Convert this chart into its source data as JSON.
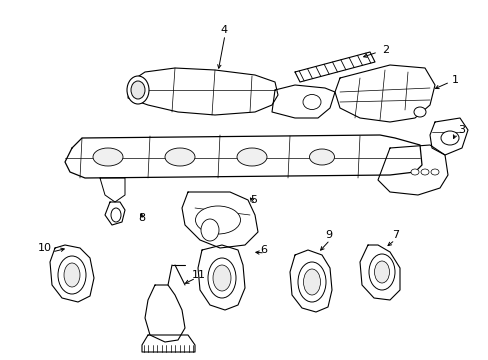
{
  "background_color": "#ffffff",
  "fig_width": 4.89,
  "fig_height": 3.6,
  "dpi": 100,
  "image_data": ""
}
